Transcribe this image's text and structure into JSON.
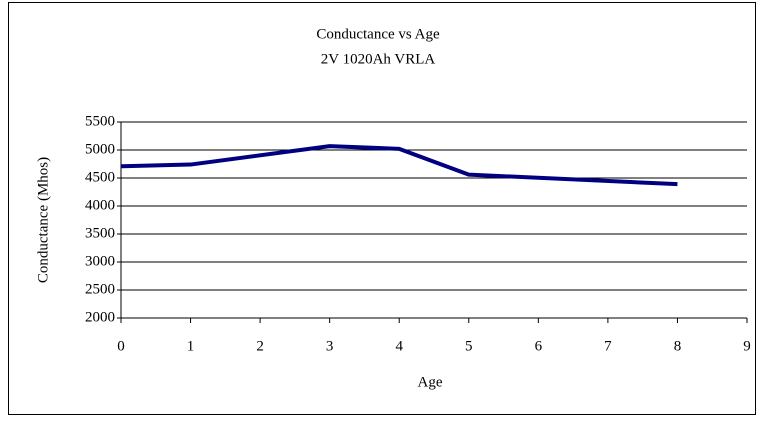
{
  "chart_data": {
    "type": "line",
    "title": "Conductance vs Age",
    "subtitle": "2V 1020Ah VRLA",
    "x_label": "Age",
    "y_label": "Conductance (Mhos)",
    "x": [
      0,
      1,
      3,
      4,
      5,
      8
    ],
    "series": [
      {
        "name": "Conductance",
        "color": "#000080",
        "values": [
          4710,
          4740,
          5070,
          5020,
          4560,
          4390
        ]
      }
    ],
    "xlim": [
      0,
      9
    ],
    "xticks": [
      0,
      1,
      2,
      3,
      4,
      5,
      6,
      7,
      8,
      9
    ],
    "ylim": [
      2000,
      5500
    ],
    "yticks": [
      2000,
      2500,
      3000,
      3500,
      4000,
      4500,
      5000,
      5500
    ],
    "grid": true
  }
}
